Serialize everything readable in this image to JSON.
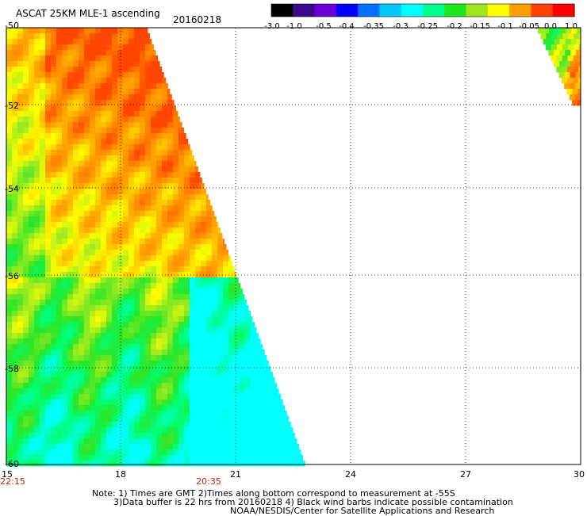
{
  "header": {
    "title": "ASCAT 25KM MLE-1 ascending",
    "date": "20160218"
  },
  "colorbar": {
    "labels": [
      "-3.0",
      "-1.0",
      "-0.5",
      "-0.4",
      "-0.35",
      "-0.3",
      "-0.25",
      "-0.2",
      "-0.15",
      "-0.1",
      "-0.05",
      "0.0",
      "1.0"
    ],
    "colors": [
      "#000000",
      "#3a0a8a",
      "#6a00d8",
      "#0000ff",
      "#0070ff",
      "#00c8ff",
      "#00ffff",
      "#00ff8c",
      "#1ee61e",
      "#a0e61e",
      "#ffff00",
      "#ffa000",
      "#ff4000",
      "#ff0000"
    ]
  },
  "axes": {
    "lat_labels": [
      "-50",
      "-52",
      "-54",
      "-56",
      "-58",
      "-60"
    ],
    "lon_labels": [
      "15",
      "18",
      "21",
      "24",
      "27",
      "30"
    ],
    "time_labels": [
      "22:15",
      "20:35"
    ]
  },
  "notes": [
    "Note: 1) Times are GMT 2)Times along bottom correspond to measurement at -55S",
    "3)Data buffer is 22 hrs from 20160218 4) Black wind barbs indicate possible contamination",
    "NOAA/NESDIS/Center for Satellite Applications and Research"
  ]
}
